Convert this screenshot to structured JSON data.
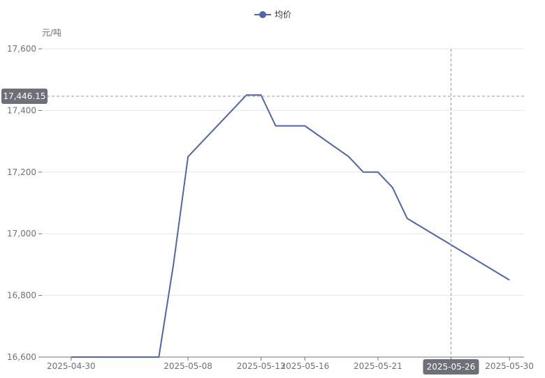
{
  "chart_data": {
    "type": "line",
    "legend": [
      "均价"
    ],
    "ylabel": "元/吨",
    "ylim": [
      16600,
      17600
    ],
    "y_ticks": [
      "16,600",
      "16,800",
      "17,000",
      "17,200",
      "17,400",
      "17,600"
    ],
    "x_tick_labels": [
      "2025-04-30",
      "2025-05-08",
      "2025-05-13",
      "2025-05-16",
      "2025-05-21",
      "2025-05-26",
      "2025-05-30"
    ],
    "series": [
      {
        "name": "均价",
        "color": "#5165a2",
        "points": [
          {
            "x": "2025-04-30",
            "y": 16600
          },
          {
            "x": "2025-05-06",
            "y": 16600
          },
          {
            "x": "2025-05-07",
            "y": 16900
          },
          {
            "x": "2025-05-08",
            "y": 17250
          },
          {
            "x": "2025-05-12",
            "y": 17450
          },
          {
            "x": "2025-05-13",
            "y": 17450
          },
          {
            "x": "2025-05-14",
            "y": 17350
          },
          {
            "x": "2025-05-15",
            "y": 17350
          },
          {
            "x": "2025-05-16",
            "y": 17350
          },
          {
            "x": "2025-05-19",
            "y": 17250
          },
          {
            "x": "2025-05-20",
            "y": 17200
          },
          {
            "x": "2025-05-21",
            "y": 17200
          },
          {
            "x": "2025-05-22",
            "y": 17150
          },
          {
            "x": "2025-05-23",
            "y": 17050
          },
          {
            "x": "2025-05-30",
            "y": 16850
          }
        ]
      }
    ],
    "crosshair": {
      "x_label": "2025-05-26",
      "y_label": "17,446.15"
    },
    "grid": true,
    "legend_position": "top-center"
  }
}
